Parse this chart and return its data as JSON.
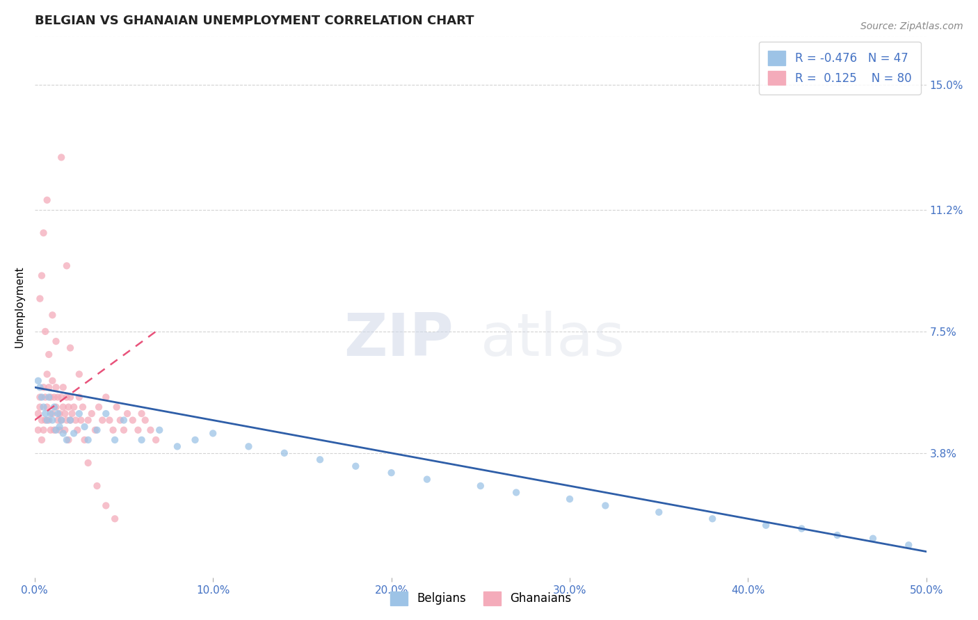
{
  "title": "BELGIAN VS GHANAIAN UNEMPLOYMENT CORRELATION CHART",
  "source": "Source: ZipAtlas.com",
  "xlabel": "",
  "ylabel": "Unemployment",
  "xlim": [
    0.0,
    0.5
  ],
  "ylim": [
    0.0,
    0.165
  ],
  "xticks": [
    0.0,
    0.1,
    0.2,
    0.3,
    0.4,
    0.5
  ],
  "xticklabels": [
    "0.0%",
    "10.0%",
    "20.0%",
    "30.0%",
    "40.0%",
    "50.0%"
  ],
  "yticks_right": [
    0.038,
    0.075,
    0.112,
    0.15
  ],
  "yticklabels_right": [
    "3.8%",
    "7.5%",
    "11.2%",
    "15.0%"
  ],
  "belgian_scatter_color": "#9DC3E6",
  "ghanaian_scatter_color": "#F4ABBA",
  "trend_belgian_color": "#2E5EA8",
  "trend_ghanaian_color": "#E8527A",
  "R_belgian": -0.476,
  "N_belgian": 47,
  "R_ghanaian": 0.125,
  "N_ghanaian": 80,
  "legend_label_belgian": "Belgians",
  "legend_label_ghanaian": "Ghanaians",
  "axis_color": "#4472C4",
  "watermark_zip": "ZIP",
  "watermark_atlas": "atlas",
  "background_color": "#ffffff",
  "grid_color": "#c8c8c8",
  "belgian_x": [
    0.002,
    0.003,
    0.004,
    0.005,
    0.006,
    0.007,
    0.008,
    0.009,
    0.01,
    0.011,
    0.012,
    0.013,
    0.014,
    0.015,
    0.016,
    0.018,
    0.02,
    0.022,
    0.025,
    0.028,
    0.03,
    0.035,
    0.04,
    0.045,
    0.05,
    0.06,
    0.07,
    0.08,
    0.09,
    0.1,
    0.12,
    0.14,
    0.16,
    0.18,
    0.2,
    0.22,
    0.25,
    0.27,
    0.3,
    0.32,
    0.35,
    0.38,
    0.41,
    0.43,
    0.45,
    0.47,
    0.49
  ],
  "belgian_y": [
    0.06,
    0.058,
    0.055,
    0.052,
    0.05,
    0.048,
    0.055,
    0.05,
    0.048,
    0.052,
    0.045,
    0.05,
    0.046,
    0.048,
    0.044,
    0.042,
    0.048,
    0.044,
    0.05,
    0.046,
    0.042,
    0.045,
    0.05,
    0.042,
    0.048,
    0.042,
    0.045,
    0.04,
    0.042,
    0.044,
    0.04,
    0.038,
    0.036,
    0.034,
    0.032,
    0.03,
    0.028,
    0.026,
    0.024,
    0.022,
    0.02,
    0.018,
    0.016,
    0.015,
    0.013,
    0.012,
    0.01
  ],
  "ghanaian_x": [
    0.002,
    0.002,
    0.003,
    0.003,
    0.004,
    0.004,
    0.005,
    0.005,
    0.006,
    0.006,
    0.007,
    0.007,
    0.008,
    0.008,
    0.009,
    0.009,
    0.01,
    0.01,
    0.011,
    0.011,
    0.012,
    0.012,
    0.013,
    0.013,
    0.014,
    0.014,
    0.015,
    0.015,
    0.016,
    0.016,
    0.017,
    0.017,
    0.018,
    0.018,
    0.019,
    0.019,
    0.02,
    0.02,
    0.021,
    0.022,
    0.023,
    0.024,
    0.025,
    0.026,
    0.027,
    0.028,
    0.03,
    0.032,
    0.034,
    0.036,
    0.038,
    0.04,
    0.042,
    0.044,
    0.046,
    0.048,
    0.05,
    0.052,
    0.055,
    0.058,
    0.06,
    0.062,
    0.065,
    0.068,
    0.003,
    0.004,
    0.005,
    0.006,
    0.007,
    0.008,
    0.01,
    0.012,
    0.015,
    0.018,
    0.02,
    0.025,
    0.03,
    0.035,
    0.04,
    0.045
  ],
  "ghanaian_y": [
    0.05,
    0.045,
    0.052,
    0.055,
    0.048,
    0.042,
    0.058,
    0.045,
    0.055,
    0.048,
    0.062,
    0.052,
    0.058,
    0.048,
    0.055,
    0.045,
    0.06,
    0.05,
    0.055,
    0.045,
    0.052,
    0.058,
    0.048,
    0.055,
    0.045,
    0.05,
    0.055,
    0.048,
    0.052,
    0.058,
    0.045,
    0.05,
    0.055,
    0.048,
    0.052,
    0.042,
    0.055,
    0.048,
    0.05,
    0.052,
    0.048,
    0.045,
    0.055,
    0.048,
    0.052,
    0.042,
    0.048,
    0.05,
    0.045,
    0.052,
    0.048,
    0.055,
    0.048,
    0.045,
    0.052,
    0.048,
    0.045,
    0.05,
    0.048,
    0.045,
    0.05,
    0.048,
    0.045,
    0.042,
    0.085,
    0.092,
    0.105,
    0.075,
    0.115,
    0.068,
    0.08,
    0.072,
    0.128,
    0.095,
    0.07,
    0.062,
    0.035,
    0.028,
    0.022,
    0.018
  ],
  "trend_belgian_x0": 0.0,
  "trend_belgian_y0": 0.058,
  "trend_belgian_x1": 0.5,
  "trend_belgian_y1": 0.008,
  "trend_ghanaian_x0": 0.0,
  "trend_ghanaian_y0": 0.048,
  "trend_ghanaian_x1": 0.068,
  "trend_ghanaian_y1": 0.075
}
